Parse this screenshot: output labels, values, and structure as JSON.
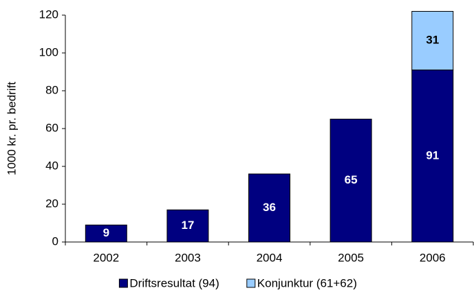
{
  "chart_data": {
    "type": "stacked_bar",
    "ylabel": "1000 kr. pr. bedrift",
    "categories": [
      "2002",
      "2003",
      "2004",
      "2005",
      "2006"
    ],
    "series": [
      {
        "name": "Driftsresultat (94)",
        "color": "#000080",
        "label_color": "#ffffff",
        "values": [
          9,
          17,
          36,
          65,
          91
        ]
      },
      {
        "name": "Konjunktur (61+62)",
        "color": "#99ccff",
        "label_color": "#000000",
        "values": [
          null,
          null,
          null,
          null,
          31
        ]
      }
    ],
    "ylim": [
      0,
      120
    ],
    "yticks": [
      0,
      20,
      40,
      60,
      80,
      100,
      120
    ],
    "grid": false,
    "legend": "bottom"
  }
}
